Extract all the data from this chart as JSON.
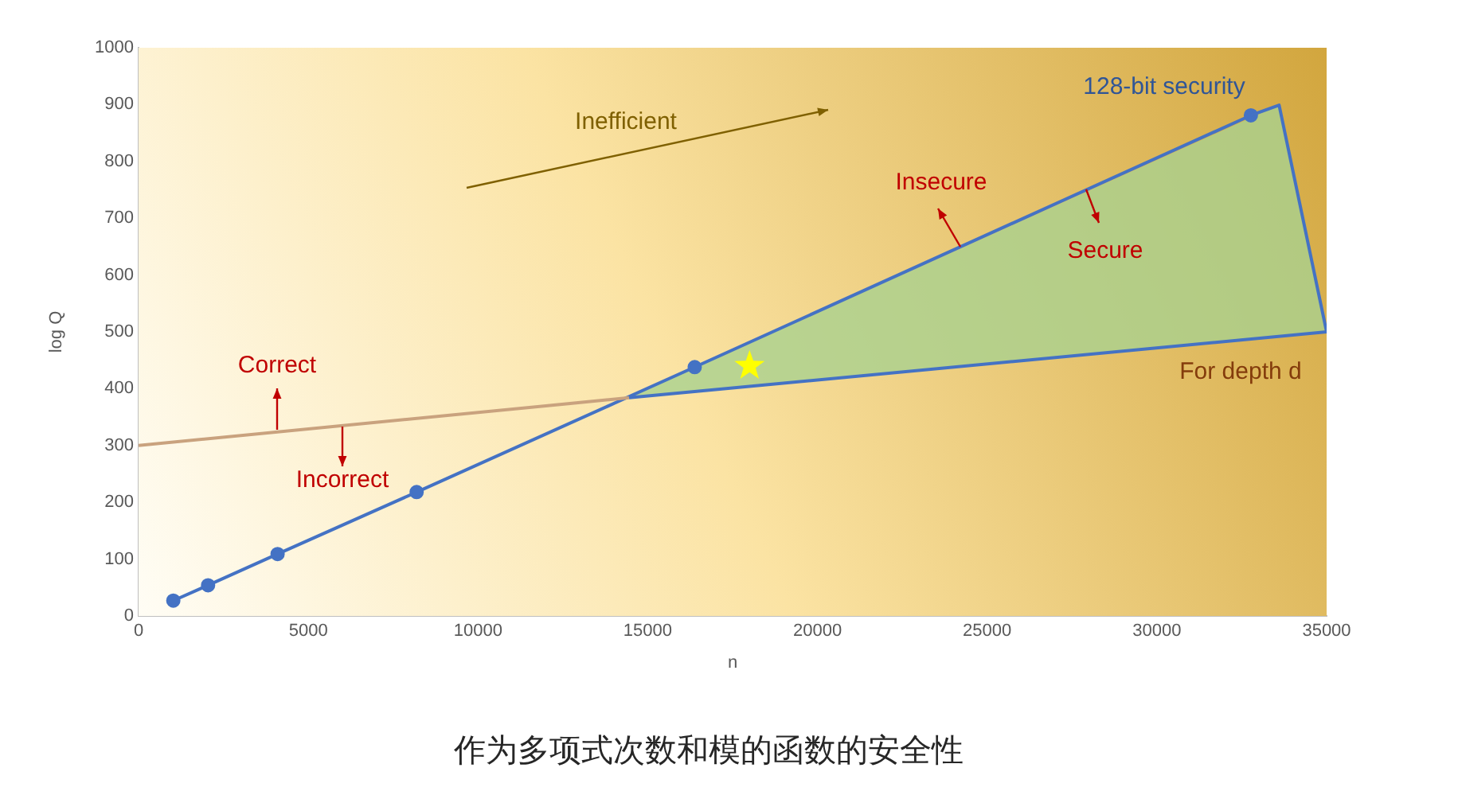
{
  "chart_data": {
    "type": "line",
    "xlabel": "n",
    "ylabel": "log Q",
    "xlim": [
      0,
      35000
    ],
    "xticks": [
      0,
      5000,
      10000,
      15000,
      20000,
      25000,
      30000,
      35000
    ],
    "ylim": [
      0,
      1000
    ],
    "yticks": [
      0,
      100,
      200,
      300,
      400,
      500,
      600,
      700,
      800,
      900,
      1000
    ],
    "series": [
      {
        "type": "area",
        "color": "#a9d18e",
        "x": [
          14450,
          33600,
          35000,
          14450
        ],
        "values": [
          384,
          899,
          500,
          384
        ]
      },
      {
        "type": "line",
        "color": "#4472c4",
        "marker": "circle",
        "x": [
          1024,
          2048,
          4096,
          8192,
          16384,
          32768
        ],
        "values": [
          27,
          54,
          109,
          218,
          438,
          881
        ]
      },
      {
        "type": "line",
        "color": "#4472c4",
        "marker": "none",
        "x": [
          32768,
          33600,
          35000
        ],
        "values": [
          881,
          899,
          500
        ]
      },
      {
        "type": "line",
        "color": "#c9a27e",
        "marker": "none",
        "x": [
          0,
          14450
        ],
        "values": [
          300,
          384
        ]
      },
      {
        "type": "line",
        "color": "#4472c4",
        "marker": "none",
        "x": [
          14450,
          35000
        ],
        "values": [
          384,
          500
        ]
      },
      {
        "type": "scatter",
        "color": "#ffff00",
        "marker": "star",
        "x": [
          18000
        ],
        "values": [
          440
        ]
      }
    ],
    "annotations": [
      "Inefficient",
      "128-bit security",
      "Insecure",
      "Secure",
      "Correct",
      "Incorrect",
      "For depth d",
      "作为多项式次数和模的函数的安全性"
    ]
  }
}
